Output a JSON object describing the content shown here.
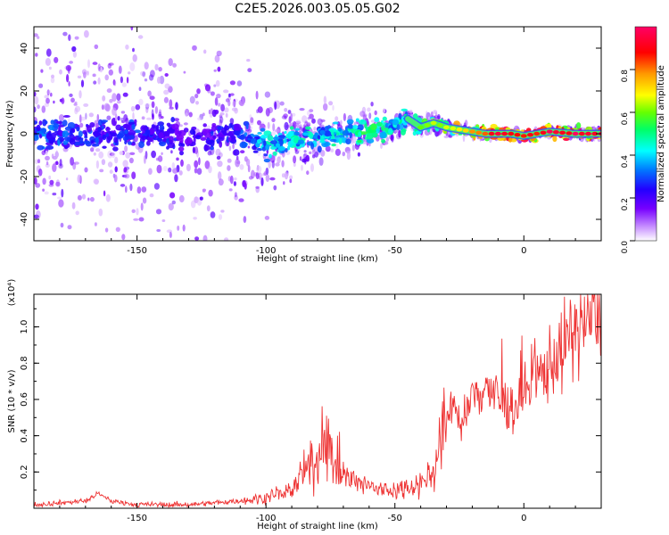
{
  "page": {
    "title": "C2E5.2026.003.05.05.G02"
  },
  "colors": {
    "snr_line": "#ee3333",
    "axis": "#000000",
    "colorbar_stops": [
      "#ffffff",
      "#cc99ff",
      "#7700ff",
      "#2200ff",
      "#0077ff",
      "#00ffff",
      "#00ff66",
      "#66ff00",
      "#ffff00",
      "#ff9900",
      "#ff0000",
      "#ff0066"
    ]
  },
  "chart_data": [
    {
      "type": "heatmap",
      "name": "spectrogram",
      "title": "C2E5.2026.003.05.05.G02",
      "xlabel": "Height of straight line (km)",
      "ylabel": "Frequency (Hz)",
      "xlim": [
        -190,
        30
      ],
      "ylim": [
        -50,
        50
      ],
      "xticks": [
        -150,
        -100,
        -50,
        0
      ],
      "xtick_labels": [
        "-150",
        "-100",
        "-50",
        "0"
      ],
      "yticks": [
        -40,
        -20,
        0,
        20,
        40
      ],
      "ytick_labels": [
        "-40",
        "-20",
        "0",
        "20",
        "40"
      ],
      "colorbar": {
        "label": "Normalized spectral amplitude",
        "range": [
          0,
          1
        ],
        "ticks": [
          0.0,
          0.2,
          0.4,
          0.6,
          0.8
        ],
        "tick_labels": [
          "0.0",
          "0.2",
          "0.4",
          "0.6",
          "0.8"
        ]
      },
      "ridge": {
        "x": [
          -190,
          -170,
          -150,
          -130,
          -110,
          -100,
          -90,
          -80,
          -70,
          -60,
          -50,
          -45,
          -40,
          -35,
          -30,
          -25,
          -20,
          -15,
          -10,
          -5,
          0,
          5,
          10,
          20,
          30
        ],
        "freq": [
          0,
          -1,
          0,
          -2,
          0,
          -5,
          -3,
          -1,
          0,
          2,
          4,
          7,
          3,
          5,
          3,
          2,
          1,
          0,
          0,
          0,
          -1,
          0,
          1,
          0,
          0
        ],
        "amplitude": [
          0.35,
          0.3,
          0.3,
          0.25,
          0.3,
          0.45,
          0.5,
          0.45,
          0.5,
          0.55,
          0.5,
          0.5,
          0.6,
          0.65,
          0.7,
          0.75,
          0.8,
          0.9,
          0.95,
          0.95,
          0.95,
          0.95,
          1.0,
          1.0,
          1.0
        ],
        "scatter_spread_hz": [
          45,
          45,
          45,
          45,
          30,
          20,
          15,
          12,
          10,
          8,
          6,
          5,
          5,
          5,
          4,
          3,
          3,
          2,
          2,
          2,
          2,
          2,
          2,
          2,
          2
        ]
      }
    },
    {
      "type": "line",
      "name": "snr",
      "xlabel": "Height of straight line (km)",
      "ylabel": "SNR (10 * v/v)",
      "multiplier": "(x10⁴)",
      "xlim": [
        -190,
        30
      ],
      "ylim": [
        0,
        1.18
      ],
      "xticks": [
        -150,
        -100,
        -50,
        0
      ],
      "xtick_labels": [
        "-150",
        "-100",
        "-50",
        "0"
      ],
      "yticks": [
        0.2,
        0.4,
        0.6,
        0.8,
        1.0
      ],
      "ytick_labels": [
        "0.2",
        "0.4",
        "0.6",
        "0.8",
        "1.0"
      ],
      "series": [
        {
          "name": "SNR",
          "x": [
            -190,
            -180,
            -170,
            -165,
            -160,
            -150,
            -140,
            -130,
            -120,
            -110,
            -100,
            -90,
            -85,
            -80,
            -77,
            -75,
            -70,
            -65,
            -60,
            -55,
            -50,
            -45,
            -40,
            -35,
            -32,
            -30,
            -27,
            -25,
            -22,
            -20,
            -15,
            -10,
            -5,
            0,
            5,
            10,
            15,
            20,
            25,
            30
          ],
          "y": [
            0.02,
            0.03,
            0.04,
            0.08,
            0.04,
            0.02,
            0.02,
            0.02,
            0.03,
            0.04,
            0.06,
            0.1,
            0.2,
            0.25,
            0.45,
            0.3,
            0.18,
            0.14,
            0.12,
            0.1,
            0.1,
            0.12,
            0.14,
            0.2,
            0.35,
            0.5,
            0.62,
            0.45,
            0.5,
            0.62,
            0.68,
            0.6,
            0.55,
            0.62,
            0.7,
            0.8,
            0.88,
            0.98,
            1.05,
            1.1
          ]
        }
      ]
    }
  ]
}
